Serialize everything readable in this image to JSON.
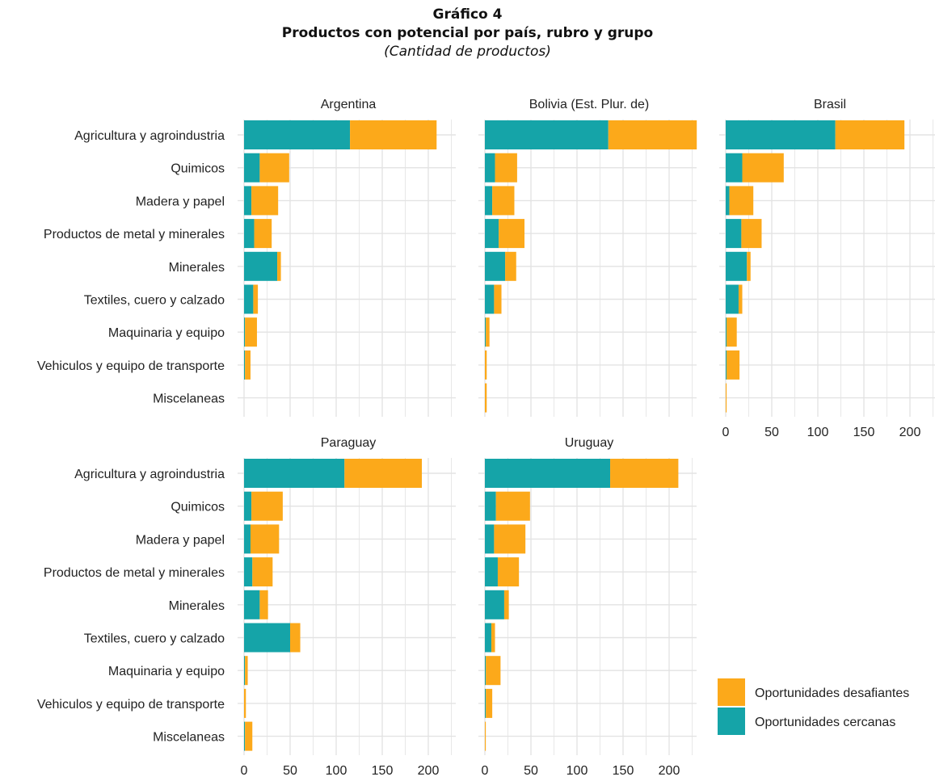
{
  "header": {
    "title": "Gráfico 4",
    "subtitle": "Productos con potencial por país, rubro y grupo",
    "note": "(Cantidad de productos)"
  },
  "colors": {
    "cercanas": "#15a4a8",
    "desafiantes": "#fca91a",
    "grid": "#e3e3e3"
  },
  "chart_data": {
    "type": "bar",
    "orientation": "horizontal",
    "stacked": true,
    "categories": [
      "Agricultura y agroindustria",
      "Quimicos",
      "Madera y papel",
      "Productos de metal y minerales",
      "Minerales",
      "Textiles, cuero y calzado",
      "Maquinaria y equipo",
      "Vehiculos y equipo de transporte",
      "Miscelaneas"
    ],
    "xlim": [
      0,
      230
    ],
    "x_ticks": [
      "0",
      "50",
      "100",
      "150",
      "200"
    ],
    "grid": true,
    "legend": {
      "position": "bottom-right",
      "entries": [
        "Oportunidades desafiantes",
        "Oportunidades cercanas"
      ]
    },
    "series_names": [
      "Oportunidades cercanas",
      "Oportunidades desafiantes"
    ],
    "panels": [
      {
        "country": "Argentina",
        "cercanas": [
          115,
          17,
          8,
          11,
          36,
          10,
          1,
          1,
          0
        ],
        "desafiantes": [
          94,
          32,
          29,
          19,
          4,
          5,
          13,
          6,
          0
        ]
      },
      {
        "country": "Bolivia (Est. Plur. de)",
        "cercanas": [
          134,
          11,
          8,
          15,
          22,
          10,
          1,
          0,
          0
        ],
        "desafiantes": [
          96,
          24,
          24,
          28,
          12,
          8,
          4,
          2,
          2
        ]
      },
      {
        "country": "Brasil",
        "cercanas": [
          119,
          18,
          4,
          17,
          23,
          14,
          1,
          1,
          0
        ],
        "desafiantes": [
          75,
          45,
          26,
          22,
          4,
          4,
          11,
          14,
          1
        ]
      },
      {
        "country": "Paraguay",
        "cercanas": [
          109,
          8,
          7,
          9,
          17,
          50,
          1,
          0,
          1
        ],
        "desafiantes": [
          84,
          34,
          31,
          22,
          9,
          11,
          3,
          2,
          8
        ]
      },
      {
        "country": "Uruguay",
        "cercanas": [
          136,
          12,
          10,
          14,
          21,
          7,
          1,
          1,
          0
        ],
        "desafiantes": [
          74,
          37,
          34,
          23,
          5,
          4,
          16,
          7,
          1
        ]
      }
    ]
  }
}
